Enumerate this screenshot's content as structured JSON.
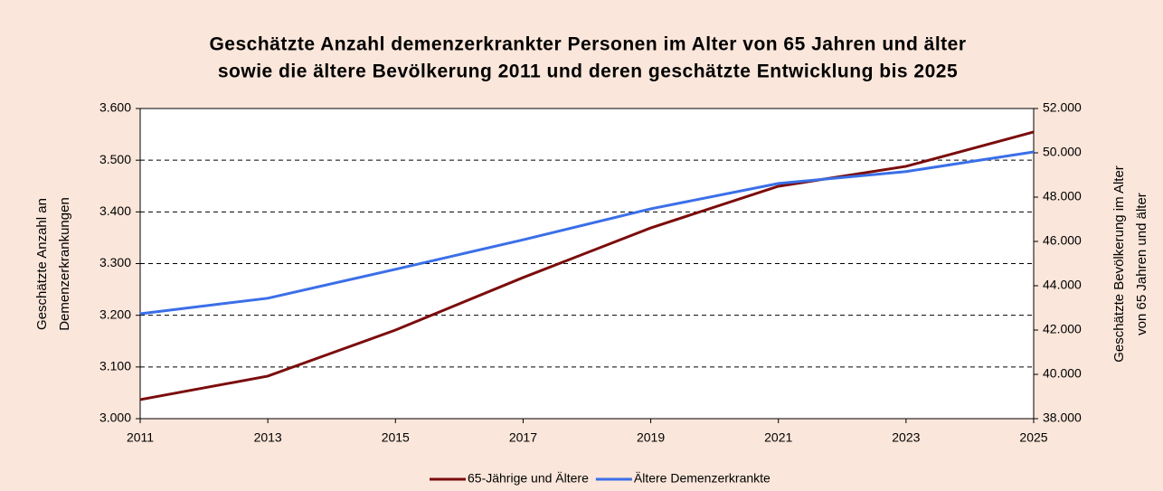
{
  "chart_data": {
    "type": "line",
    "title": [
      "Geschätzte Anzahl demenzerkrankter Personen im Alter von 65 Jahren und älter",
      "sowie die ältere Bevölkerung 2011 und deren geschätzte Entwicklung bis 2025"
    ],
    "ylabel": [
      "Geschätzte Anzahl an",
      "Demenzerkrankungen"
    ],
    "y2label": [
      "Geschätzte Bevölkerung im Alter",
      "von 65 Jahren und älter"
    ],
    "x": [
      2011,
      2013,
      2015,
      2017,
      2019,
      2021,
      2023,
      2025
    ],
    "xlim": [
      2011,
      2025
    ],
    "xticks": [
      2011,
      2013,
      2015,
      2017,
      2019,
      2021,
      2023,
      2025
    ],
    "ylim": [
      3000,
      3600
    ],
    "yticks": [
      {
        "value": 3000,
        "label": "3.000"
      },
      {
        "value": 3100,
        "label": "3.100"
      },
      {
        "value": 3200,
        "label": "3.200"
      },
      {
        "value": 3300,
        "label": "3.300"
      },
      {
        "value": 3400,
        "label": "3.400"
      },
      {
        "value": 3500,
        "label": "3.500"
      },
      {
        "value": 3600,
        "label": "3.600"
      }
    ],
    "y2lim": [
      38000,
      52000
    ],
    "y2ticks": [
      {
        "value": 38000,
        "label": "38.000"
      },
      {
        "value": 40000,
        "label": "40.000"
      },
      {
        "value": 42000,
        "label": "42.000"
      },
      {
        "value": 44000,
        "label": "44.000"
      },
      {
        "value": 46000,
        "label": "46.000"
      },
      {
        "value": 48000,
        "label": "48.000"
      },
      {
        "value": 50000,
        "label": "50.000"
      },
      {
        "value": 52000,
        "label": "52.000"
      }
    ],
    "grid": true,
    "legend": "bottom",
    "series": [
      {
        "name": "65-Jährige und Ältere",
        "color": "#7b0c0c",
        "axis": "y2",
        "values": [
          38860,
          39920,
          42000,
          44370,
          46610,
          48490,
          49390,
          50940
        ]
      },
      {
        "name": "Ältere Demenzerkrankte",
        "color": "#3b6fe8",
        "values": [
          3203,
          3233,
          3289,
          3346,
          3406,
          3455,
          3478,
          3516
        ]
      }
    ]
  }
}
